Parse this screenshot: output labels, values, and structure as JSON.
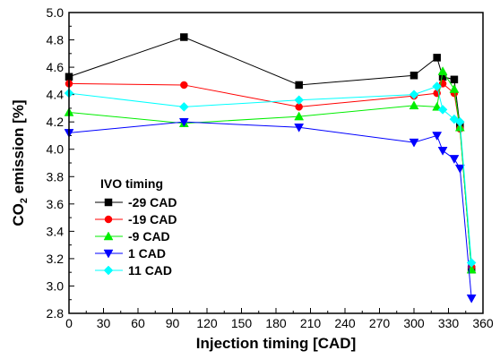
{
  "chart_data": {
    "type": "line",
    "xlabel": "Injection timing  [CAD]",
    "ylabel": {
      "prefix": "CO",
      "subscript": "2",
      "suffix": " emission  [%]"
    },
    "xlim": [
      0,
      360
    ],
    "ylim": [
      2.8,
      5.0
    ],
    "x_ticks": [
      "0",
      "30",
      "60",
      "90",
      "120",
      "150",
      "180",
      "210",
      "240",
      "270",
      "300",
      "330",
      "360"
    ],
    "y_ticks": [
      "2.8",
      "3.0",
      "3.2",
      "3.4",
      "3.6",
      "3.8",
      "4.0",
      "4.2",
      "4.4",
      "4.6",
      "4.8",
      "5.0"
    ],
    "grid": false,
    "legend": {
      "title": "IVO timing",
      "placement": "lower-left"
    },
    "series": [
      {
        "name": "-29 CAD",
        "color": "#000000",
        "marker": "square",
        "x": [
          0,
          100,
          200,
          300,
          320,
          325,
          335,
          340,
          350
        ],
        "y": [
          4.53,
          4.82,
          4.47,
          4.54,
          4.67,
          4.53,
          4.51,
          4.17,
          3.12
        ]
      },
      {
        "name": "-19 CAD",
        "color": "#ff0000",
        "marker": "circle",
        "x": [
          0,
          100,
          200,
          300,
          320,
          325,
          335,
          340,
          350
        ],
        "y": [
          4.48,
          4.47,
          4.31,
          4.39,
          4.41,
          4.48,
          4.41,
          4.15,
          3.14
        ]
      },
      {
        "name": "-9 CAD",
        "color": "#00ee00",
        "marker": "triangle-up",
        "x": [
          0,
          100,
          200,
          300,
          320,
          325,
          335,
          340,
          350
        ],
        "y": [
          4.27,
          4.19,
          4.24,
          4.32,
          4.31,
          4.57,
          4.44,
          4.16,
          3.12
        ]
      },
      {
        "name": "1 CAD",
        "color": "#0000ff",
        "marker": "triangle-down",
        "x": [
          0,
          100,
          200,
          300,
          320,
          325,
          335,
          340,
          350
        ],
        "y": [
          4.12,
          4.2,
          4.16,
          4.05,
          4.1,
          3.99,
          3.93,
          3.86,
          2.91
        ]
      },
      {
        "name": "11 CAD",
        "color": "#00ffff",
        "marker": "diamond",
        "x": [
          0,
          100,
          200,
          300,
          320,
          325,
          335,
          340,
          350
        ],
        "y": [
          4.41,
          4.31,
          4.36,
          4.4,
          4.46,
          4.29,
          4.22,
          4.2,
          3.17
        ]
      }
    ]
  }
}
